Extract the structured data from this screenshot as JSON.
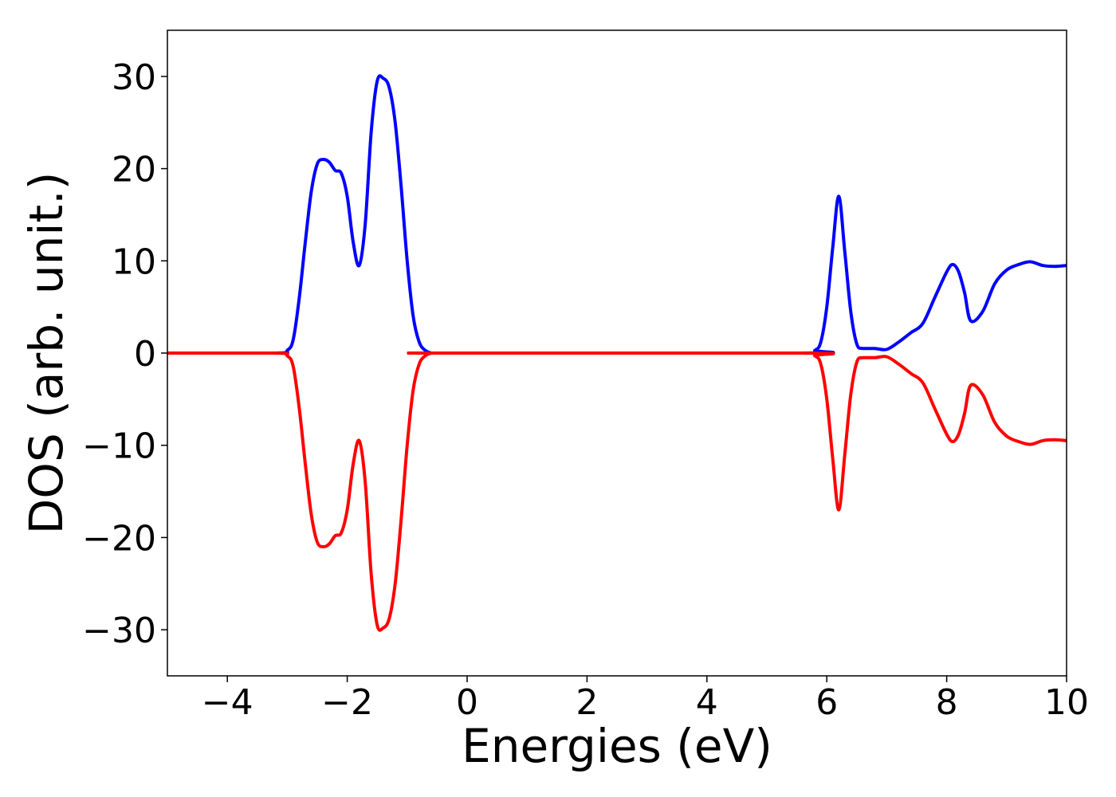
{
  "chart_data": {
    "type": "line",
    "title": "",
    "xlabel": "Energies (eV)",
    "ylabel": "DOS (arb. unit.)",
    "xlim": [
      -5,
      10
    ],
    "ylim": [
      -35,
      35
    ],
    "xticks": [
      -4,
      -2,
      0,
      2,
      4,
      6,
      8,
      10
    ],
    "xtick_labels": [
      "−4",
      "−2",
      "0",
      "2",
      "4",
      "6",
      "8",
      "10"
    ],
    "yticks": [
      30,
      20,
      10,
      0,
      -10,
      -20,
      -30
    ],
    "ytick_labels": [
      "30",
      "20",
      "10",
      "0",
      "−10",
      "−20",
      "−30"
    ],
    "grid": false,
    "legend": "none",
    "series": [
      {
        "color": "#0000ff",
        "x": [
          -5,
          -3.2,
          -3.0,
          -2.9,
          -2.8,
          -2.7,
          -2.6,
          -2.5,
          -2.4,
          -2.3,
          -2.2,
          -2.1,
          -2.0,
          -1.9,
          -1.8,
          -1.7,
          -1.6,
          -1.5,
          -1.4,
          -1.3,
          -1.2,
          -1.1,
          -1.0,
          -0.9,
          -0.8,
          -0.7,
          -0.6,
          -0.5,
          5.6,
          5.8,
          5.9,
          6.0,
          6.1,
          6.2,
          6.3,
          6.4,
          6.5,
          6.6,
          6.8,
          7.0,
          7.2,
          7.4,
          7.6,
          7.8,
          8.0,
          8.1,
          8.2,
          8.3,
          8.4,
          8.6,
          8.8,
          9.0,
          9.2,
          9.4,
          9.6,
          9.8,
          10.0
        ],
        "y": [
          0,
          0,
          0.3,
          1.5,
          6,
          12,
          17.5,
          20.5,
          21,
          20.7,
          19.8,
          19.5,
          17,
          12,
          9.5,
          14,
          24,
          29.5,
          29.8,
          28.8,
          25,
          18,
          10,
          4,
          1.2,
          0.3,
          0,
          0,
          0,
          0.3,
          1.2,
          5,
          11.5,
          17,
          11,
          4.5,
          1,
          0.5,
          0.5,
          0.4,
          1.2,
          2.2,
          3.2,
          6,
          8.8,
          9.6,
          8.8,
          6.5,
          3.5,
          4.5,
          7.5,
          9,
          9.6,
          9.9,
          9.5,
          9.4,
          9.5
        ]
      },
      {
        "color": "#ff0000",
        "x": [
          -5,
          -3.2,
          -3.0,
          -2.9,
          -2.8,
          -2.7,
          -2.6,
          -2.5,
          -2.4,
          -2.3,
          -2.2,
          -2.1,
          -2.0,
          -1.9,
          -1.8,
          -1.7,
          -1.6,
          -1.5,
          -1.4,
          -1.3,
          -1.2,
          -1.1,
          -1.0,
          -0.9,
          -0.8,
          -0.7,
          -0.6,
          -0.5,
          5.6,
          5.8,
          5.9,
          6.0,
          6.1,
          6.2,
          6.3,
          6.4,
          6.5,
          6.6,
          6.8,
          7.0,
          7.2,
          7.4,
          7.6,
          7.8,
          8.0,
          8.1,
          8.2,
          8.3,
          8.4,
          8.6,
          8.8,
          9.0,
          9.2,
          9.4,
          9.6,
          9.8,
          10.0
        ],
        "y": [
          0,
          0,
          -0.3,
          -1.5,
          -6,
          -12,
          -17.5,
          -20.5,
          -21,
          -20.7,
          -19.8,
          -19.5,
          -17,
          -12,
          -9.5,
          -14,
          -24,
          -29.5,
          -29.8,
          -28.8,
          -25,
          -18,
          -10,
          -4,
          -1.2,
          -0.3,
          0,
          0,
          0,
          -0.3,
          -1.2,
          -5,
          -11.5,
          -17,
          -11,
          -4.5,
          -1,
          -0.5,
          -0.5,
          -0.4,
          -1.2,
          -2.2,
          -3.2,
          -6,
          -8.8,
          -9.6,
          -8.8,
          -6.5,
          -3.5,
          -4.5,
          -7.5,
          -9,
          -9.6,
          -9.9,
          -9.5,
          -9.4,
          -9.5
        ]
      }
    ]
  }
}
